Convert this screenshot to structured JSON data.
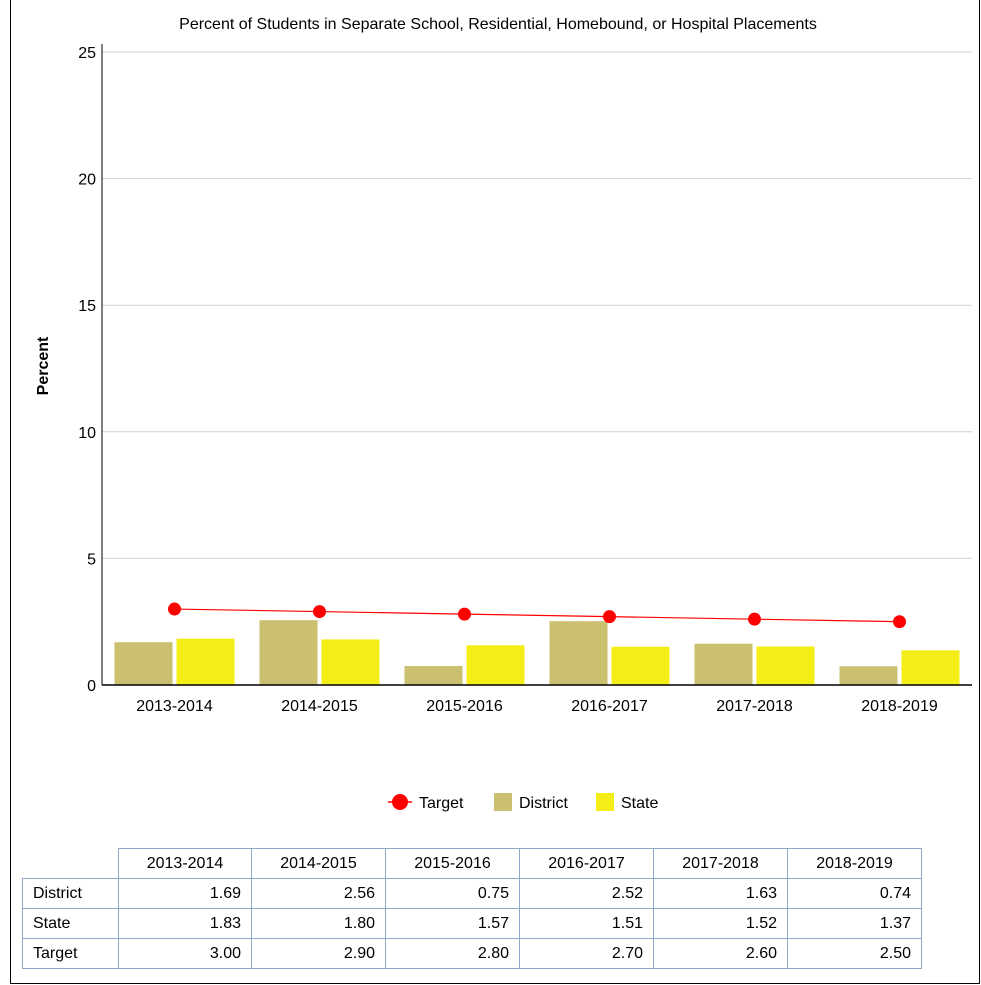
{
  "chart_data": {
    "type": "bar",
    "title": "Percent of Students in Separate School, Residential, Homebound, or Hospital Placements",
    "xlabel": "",
    "ylabel": "Percent",
    "ylim": [
      0,
      25
    ],
    "yticks": [
      "0",
      "5",
      "10",
      "15",
      "20",
      "25"
    ],
    "categories": [
      "2013-2014",
      "2014-2015",
      "2015-2016",
      "2016-2017",
      "2017-2018",
      "2018-2019"
    ],
    "series": [
      {
        "name": "District",
        "kind": "bar",
        "color": "#cbbf70",
        "values": [
          1.69,
          2.56,
          0.75,
          2.52,
          1.63,
          0.74
        ]
      },
      {
        "name": "State",
        "kind": "bar",
        "color": "#f5ed16",
        "values": [
          1.83,
          1.8,
          1.57,
          1.51,
          1.52,
          1.37
        ]
      },
      {
        "name": "Target",
        "kind": "line",
        "color": "#ff0000",
        "values": [
          3.0,
          2.9,
          2.8,
          2.7,
          2.6,
          2.5
        ]
      }
    ],
    "grid": true,
    "legend_position": "bottom"
  },
  "table": {
    "headers": [
      "2013-2014",
      "2014-2015",
      "2015-2016",
      "2016-2017",
      "2017-2018",
      "2018-2019"
    ],
    "rows": [
      {
        "label": "District",
        "values": [
          "1.69",
          "2.56",
          "0.75",
          "2.52",
          "1.63",
          "0.74"
        ]
      },
      {
        "label": "State",
        "values": [
          "1.83",
          "1.80",
          "1.57",
          "1.51",
          "1.52",
          "1.37"
        ]
      },
      {
        "label": "Target",
        "values": [
          "3.00",
          "2.90",
          "2.80",
          "2.70",
          "2.60",
          "2.50"
        ]
      }
    ]
  },
  "legend": [
    {
      "label": "Target",
      "icon": "red-dot-line-icon",
      "color": "#ff0000"
    },
    {
      "label": "District",
      "icon": "square-icon",
      "color": "#cbbf70"
    },
    {
      "label": "State",
      "icon": "square-icon",
      "color": "#f5ed16"
    }
  ]
}
